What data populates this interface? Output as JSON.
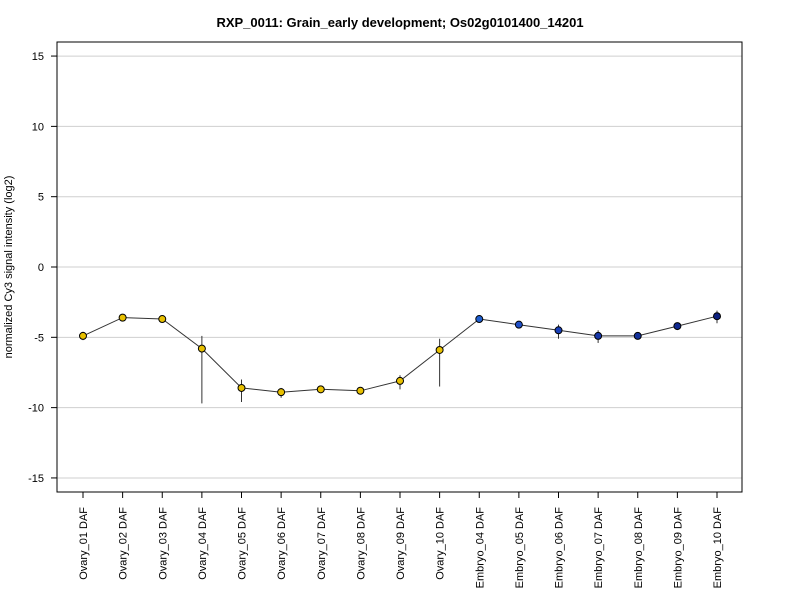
{
  "chart_data": {
    "type": "line",
    "title": "RXP_0011: Grain_early development; Os02g0101400_14201",
    "xlabel": "",
    "ylabel": "normalized Cy3 signal intensity (log2)",
    "ylim": [
      -16,
      16
    ],
    "yticks": [
      -15,
      -10,
      -5,
      0,
      5,
      10,
      15
    ],
    "grid": true,
    "categories": [
      "Ovary_01 DAF",
      "Ovary_02 DAF",
      "Ovary_03 DAF",
      "Ovary_04 DAF",
      "Ovary_05 DAF",
      "Ovary_06 DAF",
      "Ovary_07 DAF",
      "Ovary_08 DAF",
      "Ovary_09 DAF",
      "Ovary_10 DAF",
      "Embryo_04 DAF",
      "Embryo_05 DAF",
      "Embryo_06 DAF",
      "Embryo_07 DAF",
      "Embryo_08 DAF",
      "Embryo_09 DAF",
      "Embryo_10 DAF"
    ],
    "values": [
      -4.9,
      -3.6,
      -3.7,
      -5.8,
      -8.6,
      -8.9,
      -8.7,
      -8.8,
      -8.1,
      -5.9,
      -3.7,
      -4.1,
      -4.5,
      -4.9,
      -4.9,
      -4.2,
      -3.5
    ],
    "err_low": [
      -5.2,
      -3.6,
      -3.8,
      -9.7,
      -9.6,
      -9.3,
      -8.7,
      -8.8,
      -8.7,
      -8.5,
      -3.7,
      -4.2,
      -5.1,
      -5.4,
      -5.0,
      -4.2,
      -4.0
    ],
    "err_high": [
      -4.6,
      -3.5,
      -3.6,
      -4.9,
      -8.0,
      -8.6,
      -8.6,
      -8.7,
      -7.7,
      -5.1,
      -3.6,
      -4.0,
      -4.1,
      -4.5,
      -4.8,
      -4.1,
      -3.1
    ],
    "point_colors": [
      "#e8c000",
      "#e8c000",
      "#e8c000",
      "#e8c000",
      "#e8c000",
      "#e8c000",
      "#e8c000",
      "#e8c000",
      "#e8c000",
      "#e8c000",
      "#1f5fd0",
      "#2050c8",
      "#1a40b8",
      "#1636a8",
      "#12309a",
      "#0f2890",
      "#0c2080"
    ],
    "line_color": "#333333"
  }
}
